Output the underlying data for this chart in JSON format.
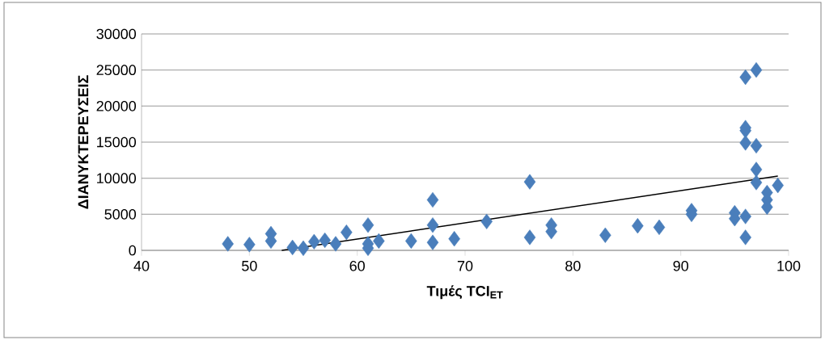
{
  "chart_data": {
    "type": "scatter",
    "xlabel": "Τιμές TCI$_{ET}$",
    "ylabel": "ΔΙΑΝΥΚΤΕΡΕΥΣΕΙΣ",
    "xlim": [
      40,
      100
    ],
    "xticks": [
      40,
      50,
      60,
      70,
      80,
      90,
      100
    ],
    "ylim": [
      0,
      30000
    ],
    "yticks": [
      0,
      5000,
      10000,
      15000,
      20000,
      25000,
      30000
    ],
    "grid": "y",
    "marker": "diamond",
    "series": [
      {
        "color": "#4a7ebb",
        "x": [
          48,
          50,
          52,
          52,
          54,
          55,
          56,
          57,
          58,
          59,
          61,
          61,
          61,
          62,
          65,
          67,
          67,
          67,
          69,
          72,
          76,
          76,
          78,
          78,
          83,
          86,
          88,
          91,
          91,
          95,
          95,
          96,
          96,
          96,
          96,
          96,
          96,
          97,
          97,
          97,
          97,
          98,
          98,
          98,
          99
        ],
        "values": [
          900,
          800,
          2300,
          1300,
          400,
          300,
          1200,
          1400,
          900,
          2500,
          3500,
          900,
          300,
          1300,
          1300,
          7000,
          3500,
          1100,
          1600,
          4000,
          9500,
          1800,
          3500,
          2600,
          2100,
          3400,
          3200,
          5500,
          5000,
          5200,
          4400,
          24000,
          17000,
          16600,
          14900,
          4700,
          1800,
          25000,
          14500,
          11200,
          9400,
          8000,
          7000,
          6000,
          9000
        ]
      },
      {
        "type": "line",
        "color": "#000000",
        "marker": "none",
        "x": [
          53,
          99
        ],
        "values": [
          0,
          10300
        ]
      }
    ]
  }
}
